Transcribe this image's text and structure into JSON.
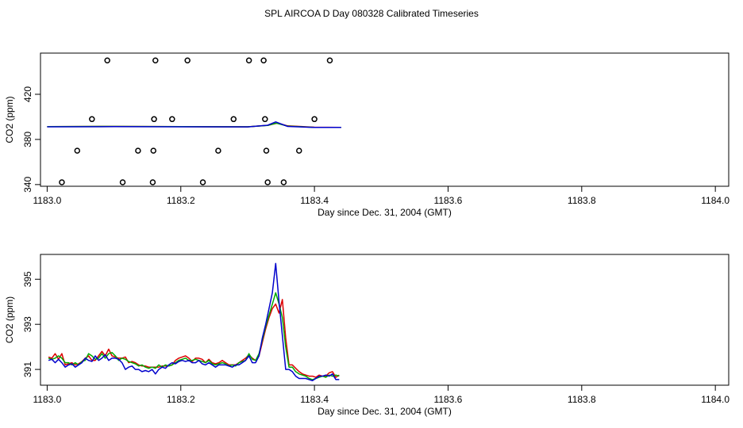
{
  "figure": {
    "title": "SPL AIRCOA D  Day 080328  Calibrated Timeseries"
  },
  "colors": {
    "axis": "#000000",
    "series_red": "#dd0000",
    "series_green": "#00aa00",
    "series_blue": "#0000cc",
    "points": "#000000"
  },
  "chart_data": [
    {
      "type": "scatter",
      "xlabel": "Day since Dec. 31, 2004 (GMT)",
      "ylabel": "CO2 (ppm)",
      "xlim": [
        1182.99,
        1184.02
      ],
      "ylim": [
        338.5,
        456.5
      ],
      "xticks": [
        1183.0,
        1183.2,
        1183.4,
        1183.6,
        1183.8,
        1184.0
      ],
      "xtick_labels": [
        "1183.0",
        "1183.2",
        "1183.4",
        "1183.6",
        "1183.8",
        "1184.0"
      ],
      "yticks": [
        340,
        380,
        420
      ],
      "ytick_labels": [
        "340",
        "380",
        "420"
      ],
      "points": [
        {
          "x": 1183.022,
          "y": 342
        },
        {
          "x": 1183.045,
          "y": 370
        },
        {
          "x": 1183.067,
          "y": 398
        },
        {
          "x": 1183.09,
          "y": 450
        },
        {
          "x": 1183.113,
          "y": 342
        },
        {
          "x": 1183.136,
          "y": 370
        },
        {
          "x": 1183.158,
          "y": 342
        },
        {
          "x": 1183.159,
          "y": 370
        },
        {
          "x": 1183.16,
          "y": 398
        },
        {
          "x": 1183.162,
          "y": 450
        },
        {
          "x": 1183.187,
          "y": 398
        },
        {
          "x": 1183.21,
          "y": 450
        },
        {
          "x": 1183.233,
          "y": 342
        },
        {
          "x": 1183.256,
          "y": 370
        },
        {
          "x": 1183.279,
          "y": 398
        },
        {
          "x": 1183.302,
          "y": 450
        },
        {
          "x": 1183.324,
          "y": 450
        },
        {
          "x": 1183.326,
          "y": 398
        },
        {
          "x": 1183.328,
          "y": 370
        },
        {
          "x": 1183.33,
          "y": 342
        },
        {
          "x": 1183.354,
          "y": 342
        },
        {
          "x": 1183.377,
          "y": 370
        },
        {
          "x": 1183.4,
          "y": 398
        },
        {
          "x": 1183.423,
          "y": 450
        }
      ],
      "series": [
        {
          "color": "red",
          "x": [
            1183.0,
            1183.1,
            1183.2,
            1183.3,
            1183.33,
            1183.345,
            1183.36,
            1183.4,
            1183.44
          ],
          "y": [
            391.3,
            391.5,
            391.3,
            391.2,
            392.5,
            394.5,
            392.0,
            390.8,
            390.7
          ]
        },
        {
          "color": "green",
          "x": [
            1183.0,
            1183.1,
            1183.2,
            1183.3,
            1183.33,
            1183.343,
            1183.36,
            1183.4,
            1183.44
          ],
          "y": [
            391.3,
            391.5,
            391.3,
            391.2,
            392.4,
            394.4,
            391.8,
            390.7,
            390.7
          ]
        },
        {
          "color": "blue",
          "x": [
            1183.0,
            1183.1,
            1183.2,
            1183.3,
            1183.33,
            1183.342,
            1183.36,
            1183.4,
            1183.44
          ],
          "y": [
            391.2,
            391.3,
            391.2,
            391.1,
            392.6,
            395.5,
            391.5,
            390.6,
            390.6
          ]
        }
      ]
    },
    {
      "type": "line",
      "xlabel": "Day since Dec. 31, 2004 (GMT)",
      "ylabel": "CO2 (ppm)",
      "xlim": [
        1182.99,
        1184.02
      ],
      "ylim": [
        390.3,
        396.1
      ],
      "xticks": [
        1183.0,
        1183.2,
        1183.4,
        1183.6,
        1183.8,
        1184.0
      ],
      "xtick_labels": [
        "1183.0",
        "1183.2",
        "1183.4",
        "1183.6",
        "1183.8",
        "1184.0"
      ],
      "yticks": [
        391,
        393,
        395
      ],
      "ytick_labels": [
        "391",
        "393",
        "395"
      ],
      "series": [
        {
          "color": "red",
          "x": [
            1183.002,
            1183.007,
            1183.012,
            1183.017,
            1183.022,
            1183.027,
            1183.032,
            1183.037,
            1183.042,
            1183.047,
            1183.052,
            1183.057,
            1183.062,
            1183.067,
            1183.072,
            1183.077,
            1183.082,
            1183.087,
            1183.092,
            1183.097,
            1183.102,
            1183.107,
            1183.112,
            1183.117,
            1183.122,
            1183.127,
            1183.132,
            1183.137,
            1183.142,
            1183.147,
            1183.152,
            1183.157,
            1183.162,
            1183.167,
            1183.172,
            1183.177,
            1183.182,
            1183.187,
            1183.192,
            1183.197,
            1183.202,
            1183.207,
            1183.212,
            1183.217,
            1183.222,
            1183.227,
            1183.232,
            1183.237,
            1183.242,
            1183.247,
            1183.252,
            1183.257,
            1183.262,
            1183.267,
            1183.272,
            1183.277,
            1183.282,
            1183.287,
            1183.292,
            1183.297,
            1183.302,
            1183.307,
            1183.312,
            1183.317,
            1183.322,
            1183.327,
            1183.332,
            1183.337,
            1183.342,
            1183.347,
            1183.352,
            1183.357,
            1183.362,
            1183.367,
            1183.372,
            1183.377,
            1183.382,
            1183.387,
            1183.392,
            1183.397,
            1183.402,
            1183.407,
            1183.412,
            1183.417,
            1183.422,
            1183.427,
            1183.432,
            1183.437
          ],
          "y": [
            391.55,
            391.5,
            391.7,
            391.45,
            391.7,
            391.2,
            391.25,
            391.3,
            391.2,
            391.25,
            391.35,
            391.5,
            391.6,
            391.4,
            391.4,
            391.6,
            391.8,
            391.6,
            391.9,
            391.6,
            391.55,
            391.5,
            391.5,
            391.55,
            391.3,
            391.35,
            391.3,
            391.2,
            391.15,
            391.15,
            391.1,
            391.1,
            391.1,
            391.1,
            391.15,
            391.15,
            391.15,
            391.2,
            391.4,
            391.5,
            391.55,
            391.6,
            391.5,
            391.35,
            391.5,
            391.5,
            391.45,
            391.3,
            391.45,
            391.3,
            391.25,
            391.3,
            391.4,
            391.3,
            391.2,
            391.2,
            391.2,
            391.3,
            391.4,
            391.5,
            391.65,
            391.5,
            391.4,
            391.6,
            392.2,
            392.8,
            393.3,
            393.7,
            393.9,
            393.5,
            394.1,
            392.4,
            391.2,
            391.2,
            391.05,
            390.9,
            390.8,
            390.75,
            390.7,
            390.7,
            390.65,
            390.75,
            390.7,
            390.7,
            390.85,
            390.9,
            390.65,
            390.75
          ]
        },
        {
          "color": "green",
          "x": [
            1183.002,
            1183.007,
            1183.012,
            1183.017,
            1183.022,
            1183.027,
            1183.032,
            1183.037,
            1183.042,
            1183.047,
            1183.052,
            1183.057,
            1183.062,
            1183.067,
            1183.072,
            1183.077,
            1183.082,
            1183.087,
            1183.092,
            1183.097,
            1183.102,
            1183.107,
            1183.112,
            1183.117,
            1183.122,
            1183.127,
            1183.132,
            1183.137,
            1183.142,
            1183.147,
            1183.152,
            1183.157,
            1183.162,
            1183.167,
            1183.172,
            1183.177,
            1183.182,
            1183.187,
            1183.192,
            1183.197,
            1183.202,
            1183.207,
            1183.212,
            1183.217,
            1183.222,
            1183.227,
            1183.232,
            1183.237,
            1183.242,
            1183.247,
            1183.252,
            1183.257,
            1183.262,
            1183.267,
            1183.272,
            1183.277,
            1183.282,
            1183.287,
            1183.292,
            1183.297,
            1183.302,
            1183.307,
            1183.312,
            1183.317,
            1183.322,
            1183.327,
            1183.332,
            1183.337,
            1183.342,
            1183.347,
            1183.352,
            1183.357,
            1183.362,
            1183.367,
            1183.372,
            1183.377,
            1183.382,
            1183.387,
            1183.392,
            1183.397,
            1183.402,
            1183.407,
            1183.412,
            1183.417,
            1183.422,
            1183.427,
            1183.432,
            1183.437
          ],
          "y": [
            391.5,
            391.45,
            391.5,
            391.6,
            391.5,
            391.3,
            391.3,
            391.2,
            391.3,
            391.2,
            391.35,
            391.4,
            391.7,
            391.6,
            391.45,
            391.5,
            391.7,
            391.5,
            391.7,
            391.75,
            391.6,
            391.4,
            391.5,
            391.45,
            391.35,
            391.3,
            391.25,
            391.15,
            391.2,
            391.1,
            391.05,
            391.1,
            391.05,
            391.2,
            391.1,
            391.2,
            391.15,
            391.2,
            391.3,
            391.4,
            391.45,
            391.5,
            391.4,
            391.4,
            391.45,
            391.4,
            391.35,
            391.3,
            391.4,
            391.25,
            391.2,
            391.25,
            391.3,
            391.25,
            391.15,
            391.2,
            391.15,
            391.3,
            391.35,
            391.4,
            391.7,
            391.45,
            391.4,
            391.7,
            392.3,
            392.9,
            393.4,
            393.9,
            394.4,
            393.9,
            393.3,
            392.0,
            391.1,
            391.1,
            390.9,
            390.8,
            390.75,
            390.7,
            390.6,
            390.55,
            390.6,
            390.65,
            390.7,
            390.65,
            390.75,
            390.7,
            390.75,
            390.7
          ]
        },
        {
          "color": "blue",
          "x": [
            1183.002,
            1183.007,
            1183.012,
            1183.017,
            1183.022,
            1183.027,
            1183.032,
            1183.037,
            1183.042,
            1183.047,
            1183.052,
            1183.057,
            1183.062,
            1183.067,
            1183.072,
            1183.077,
            1183.082,
            1183.087,
            1183.092,
            1183.097,
            1183.102,
            1183.107,
            1183.112,
            1183.117,
            1183.122,
            1183.127,
            1183.132,
            1183.137,
            1183.142,
            1183.147,
            1183.152,
            1183.157,
            1183.162,
            1183.167,
            1183.172,
            1183.177,
            1183.182,
            1183.187,
            1183.192,
            1183.197,
            1183.202,
            1183.207,
            1183.212,
            1183.217,
            1183.222,
            1183.227,
            1183.232,
            1183.237,
            1183.242,
            1183.247,
            1183.252,
            1183.257,
            1183.262,
            1183.267,
            1183.272,
            1183.277,
            1183.282,
            1183.287,
            1183.292,
            1183.297,
            1183.302,
            1183.307,
            1183.312,
            1183.317,
            1183.322,
            1183.327,
            1183.332,
            1183.337,
            1183.342,
            1183.347,
            1183.352,
            1183.357,
            1183.362,
            1183.367,
            1183.372,
            1183.377,
            1183.382,
            1183.387,
            1183.392,
            1183.397,
            1183.402,
            1183.407,
            1183.412,
            1183.417,
            1183.422,
            1183.427,
            1183.432,
            1183.437
          ],
          "y": [
            391.4,
            391.45,
            391.3,
            391.45,
            391.3,
            391.1,
            391.2,
            391.25,
            391.1,
            391.2,
            391.3,
            391.5,
            391.4,
            391.35,
            391.6,
            391.4,
            391.5,
            391.65,
            391.4,
            391.5,
            391.5,
            391.45,
            391.3,
            391.0,
            391.1,
            391.15,
            391.0,
            391.0,
            390.9,
            390.95,
            390.9,
            391.0,
            390.8,
            391.0,
            391.1,
            391.05,
            391.2,
            391.3,
            391.25,
            391.35,
            391.4,
            391.35,
            391.4,
            391.3,
            391.3,
            391.4,
            391.25,
            391.2,
            391.3,
            391.2,
            391.1,
            391.2,
            391.2,
            391.2,
            391.15,
            391.1,
            391.2,
            391.2,
            391.3,
            391.4,
            391.6,
            391.3,
            391.3,
            391.6,
            392.4,
            393.0,
            393.7,
            394.4,
            395.7,
            394.0,
            392.5,
            391.0,
            391.0,
            390.9,
            390.7,
            390.6,
            390.6,
            390.6,
            390.55,
            390.5,
            390.6,
            390.7,
            390.7,
            390.75,
            390.7,
            390.8,
            390.55,
            390.55
          ]
        }
      ]
    }
  ]
}
